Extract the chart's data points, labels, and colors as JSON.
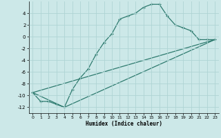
{
  "xlabel": "Humidex (Indice chaleur)",
  "bg_color": "#cce8e8",
  "line_color": "#2d7a6e",
  "grid_color": "#afd4d4",
  "xlim": [
    -0.5,
    23.5
  ],
  "ylim": [
    -13,
    6
  ],
  "yticks": [
    -12,
    -10,
    -8,
    -6,
    -4,
    -2,
    0,
    2,
    4
  ],
  "xticks": [
    0,
    1,
    2,
    3,
    4,
    5,
    6,
    7,
    8,
    9,
    10,
    11,
    12,
    13,
    14,
    15,
    16,
    17,
    18,
    19,
    20,
    21,
    22,
    23
  ],
  "line1_x": [
    0,
    1,
    2,
    3,
    4,
    5,
    6,
    7,
    8,
    9,
    10,
    11,
    12,
    13,
    14,
    15,
    16,
    17,
    18,
    19,
    20,
    21,
    22,
    23
  ],
  "line1_y": [
    -9.5,
    -11,
    -11,
    -11.5,
    -12,
    -9,
    -7,
    -5.5,
    -3,
    -1,
    0.5,
    3,
    3.5,
    4,
    5,
    5.5,
    5.5,
    3.5,
    2,
    1.5,
    1,
    -0.5,
    -0.5,
    -0.5
  ],
  "line2_x": [
    0,
    4,
    23
  ],
  "line2_y": [
    -9.5,
    -12,
    -0.5
  ],
  "line3_x": [
    0,
    23
  ],
  "line3_y": [
    -9.5,
    -0.5
  ]
}
